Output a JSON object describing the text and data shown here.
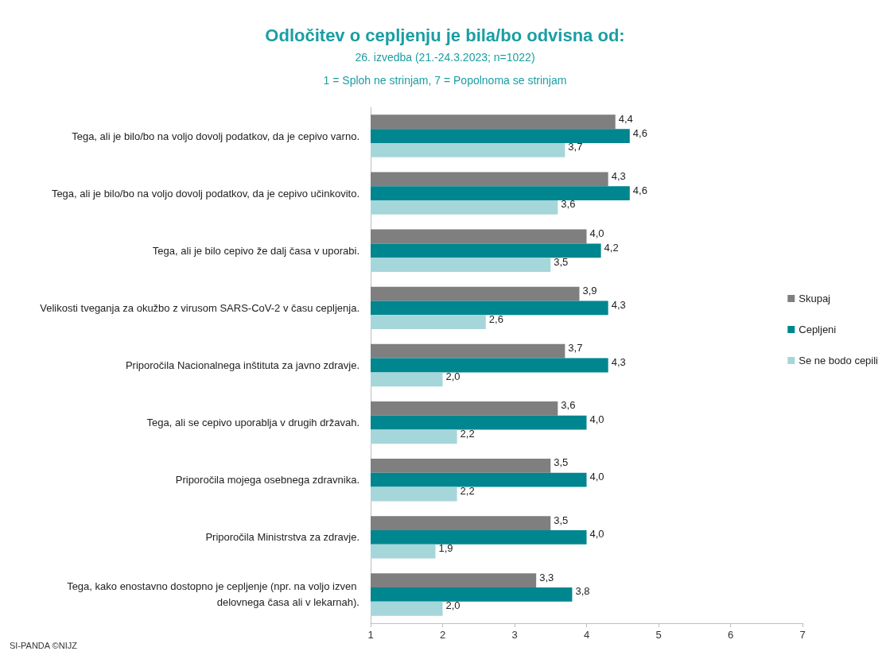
{
  "chart_data": {
    "type": "bar",
    "orientation": "horizontal",
    "title": "Odločitev o cepljenju je bila/bo odvisna od:",
    "subtitle": "26. izvedba (21.-24.3.2023; n=1022)",
    "annotations": [
      "1 = Sploh ne strinjam, 7 = Popolnoma se strinjam",
      "SI-PANDA ©NIJZ"
    ],
    "categories": [
      "Tega, ali je bilo/bo na voljo dovolj podatkov, da je cepivo varno.",
      "Tega, ali je bilo/bo na voljo dovolj podatkov, da je cepivo učinkovito.",
      "Tega, ali je bilo cepivo že dalj časa v uporabi.",
      "Velikosti tveganja za okužbo z virusom SARS-CoV-2 v času cepljenja.",
      "Priporočila Nacionalnega inštituta za javno zdravje.",
      "Tega, ali se cepivo uporablja v drugih državah.",
      "Priporočila mojega osebnega zdravnika.",
      "Priporočila Ministrstva za zdravje.",
      "Tega, kako enostavno dostopno je cepljenje (npr. na voljo izven delovnega časa ali v lekarnah)."
    ],
    "series": [
      {
        "name": "Skupaj",
        "color": "#7f7f7f",
        "values": [
          4.4,
          4.3,
          4.0,
          3.9,
          3.7,
          3.6,
          3.5,
          3.5,
          3.3
        ],
        "value_labels": [
          "4,4",
          "4,3",
          "4,0",
          "3,9",
          "3,7",
          "3,6",
          "3,5",
          "3,5",
          "3,3"
        ]
      },
      {
        "name": "Cepljeni",
        "color": "#00868f",
        "values": [
          4.6,
          4.6,
          4.2,
          4.3,
          4.3,
          4.0,
          4.0,
          4.0,
          3.8
        ],
        "value_labels": [
          "4,6",
          "4,6",
          "4,2",
          "4,3",
          "4,3",
          "4,0",
          "4,0",
          "4,0",
          "3,8"
        ]
      },
      {
        "name": "Se ne bodo cepili",
        "color": "#a5d6da",
        "values": [
          3.7,
          3.6,
          3.5,
          2.6,
          2.0,
          2.2,
          2.2,
          1.9,
          2.0
        ],
        "value_labels": [
          "3,7",
          "3,6",
          "3,5",
          "2,6",
          "2,0",
          "2,2",
          "2,2",
          "1,9",
          "2,0"
        ]
      }
    ],
    "xlim": [
      1,
      7
    ],
    "xticks": [
      1,
      2,
      3,
      4,
      5,
      6,
      7
    ],
    "grid": false,
    "legend": "right"
  }
}
